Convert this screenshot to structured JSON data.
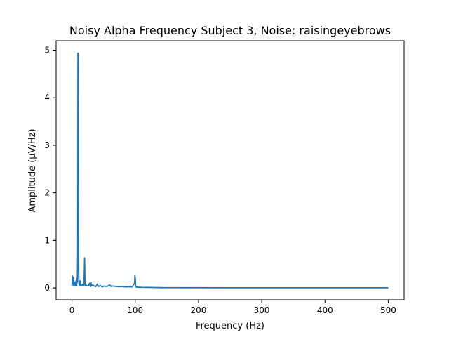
{
  "chart_data": {
    "type": "line",
    "title": "Noisy Alpha Frequency Subject 3, Noise: raisingeyebrows",
    "xlabel": "Frequency (Hz)",
    "ylabel": "Amplitude (μV/Hz)",
    "xlim": [
      -25,
      525
    ],
    "ylim": [
      -0.25,
      5.2
    ],
    "xticks": [
      0,
      100,
      200,
      300,
      400,
      500
    ],
    "yticks": [
      0,
      1,
      2,
      3,
      4,
      5
    ],
    "grid": false,
    "series": [
      {
        "color": "#1f77b4",
        "x": [
          0,
          0.5,
          1,
          1.5,
          2,
          2.5,
          3,
          3.5,
          4,
          4.5,
          5,
          5.5,
          6,
          6.5,
          7,
          7.5,
          8,
          8.5,
          9,
          9.5,
          10,
          10.3,
          10.6,
          11,
          11.5,
          12,
          13,
          14,
          15,
          16,
          17,
          18,
          19,
          19.5,
          20,
          20.5,
          21,
          22,
          24,
          26,
          28,
          29,
          30,
          31,
          33,
          35,
          38,
          40,
          42,
          45,
          48,
          50,
          55,
          58,
          60,
          62,
          65,
          70,
          75,
          80,
          85,
          90,
          95,
          99,
          99.5,
          100,
          100.5,
          101,
          105,
          110,
          120,
          130,
          140,
          150,
          175,
          200,
          250,
          300,
          350,
          400,
          450,
          500
        ],
        "y": [
          0.03,
          0.18,
          0.25,
          0.08,
          0.22,
          0.05,
          0.15,
          0.04,
          0.1,
          0.06,
          0.12,
          0.05,
          0.08,
          0.15,
          0.1,
          0.04,
          0.2,
          0.12,
          0.6,
          4.94,
          4.9,
          4.5,
          0.5,
          0.12,
          0.05,
          0.08,
          0.15,
          0.04,
          0.06,
          0.05,
          0.08,
          0.04,
          0.07,
          0.3,
          0.63,
          0.25,
          0.05,
          0.06,
          0.04,
          0.05,
          0.1,
          0.03,
          0.12,
          0.04,
          0.06,
          0.04,
          0.03,
          0.08,
          0.03,
          0.05,
          0.02,
          0.04,
          0.03,
          0.05,
          0.06,
          0.03,
          0.04,
          0.03,
          0.025,
          0.03,
          0.02,
          0.025,
          0.02,
          0.1,
          0.26,
          0.22,
          0.08,
          0.02,
          0.015,
          0.012,
          0.01,
          0.008,
          0.006,
          0.005,
          0.004,
          0.004,
          0.003,
          0.003,
          0.003,
          0.003,
          0.003,
          0.003
        ]
      }
    ]
  }
}
